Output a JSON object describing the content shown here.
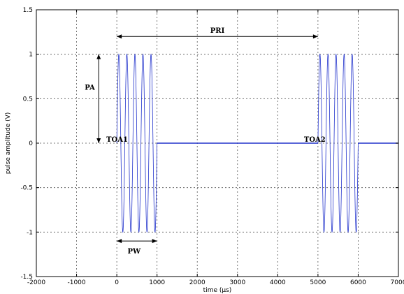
{
  "chart_data": {
    "type": "line",
    "title": "",
    "xlabel": "time (µs)",
    "ylabel": "pulse amplitude (V)",
    "xlim": [
      -2000,
      7000
    ],
    "ylim": [
      -1.5,
      1.5
    ],
    "grid": true,
    "x_ticks": [
      -2000,
      -1000,
      0,
      1000,
      2000,
      3000,
      4000,
      5000,
      6000,
      7000
    ],
    "x_tick_labels": [
      "-2000",
      "-1000",
      "0",
      "1000",
      "2000",
      "3000",
      "4000",
      "5000",
      "6000",
      "7000"
    ],
    "y_ticks": [
      -1.5,
      -1,
      -0.5,
      0,
      0.5,
      1,
      1.5
    ],
    "y_tick_labels": [
      "-1.5",
      "-1",
      "-0.5",
      "0",
      "0.5",
      "1",
      "1.5"
    ],
    "series": [
      {
        "color": "#2233cc",
        "segments": [
          {
            "kind": "baseline",
            "x": [
              1000,
              5000
            ],
            "y": 0
          },
          {
            "kind": "pulse",
            "x_start": 0,
            "x_end": 1000,
            "amplitude": 1,
            "cycles": 5
          },
          {
            "kind": "pulse",
            "x_start": 5000,
            "x_end": 6000,
            "amplitude": 1,
            "cycles": 5
          },
          {
            "kind": "baseline",
            "x": [
              6000,
              7000
            ],
            "y": 0
          }
        ]
      }
    ],
    "annotations": {
      "pri": {
        "label": "PRI",
        "x_from": 0,
        "x_to": 5000,
        "y": 1.2
      },
      "pa": {
        "label": "PA",
        "x": -450,
        "y_from": 0,
        "y_to": 1
      },
      "pw": {
        "label": "PW",
        "x_from": 0,
        "x_to": 1000,
        "y": -1.1
      },
      "toa1": {
        "label": "TOA1",
        "x": 0,
        "y": 0
      },
      "toa2": {
        "label": "TOA2",
        "x": 5000,
        "y": 0
      }
    }
  }
}
